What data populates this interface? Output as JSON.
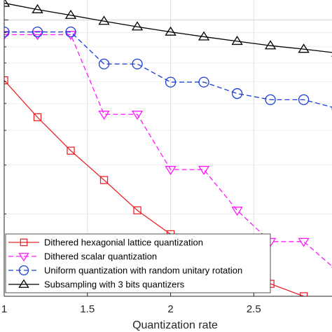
{
  "chart_data": {
    "type": "line",
    "xlabel": "Quantization rate",
    "ylabel": "",
    "title": "",
    "xlim": [
      1,
      2.97
    ],
    "ylim_log": [
      0.0101,
      0.118
    ],
    "yscale": "log",
    "grid": true,
    "legend_position": "bottom-left",
    "x_ticks": [
      1,
      1.5,
      2,
      2.5
    ],
    "x_tick_labels": [
      "1",
      "1.5",
      "2",
      "2.5"
    ],
    "series": [
      {
        "name": "Dithered hexagonial lattice quantization",
        "color": "#e8262a",
        "dash": "solid",
        "marker": "square",
        "x": [
          1,
          1.2,
          1.4,
          1.6,
          1.8,
          2.0,
          2.2,
          2.4,
          2.6,
          2.8,
          3.0
        ],
        "y": [
          0.0606,
          0.0446,
          0.0338,
          0.0265,
          0.0206,
          0.0169,
          0.0144,
          0.0123,
          0.0112,
          0.0101,
          0.0096
        ]
      },
      {
        "name": "Dithered scalar quantization",
        "color": "#ff19ff",
        "dash": "dashed",
        "marker": "triangle-down",
        "x": [
          1,
          1.2,
          1.4,
          1.6,
          1.8,
          2.0,
          2.2,
          2.4,
          2.6,
          2.8,
          3.0
        ],
        "y": [
          0.0885,
          0.0885,
          0.0885,
          0.0457,
          0.0457,
          0.0289,
          0.0289,
          0.0206,
          0.0159,
          0.0159,
          0.0125
        ]
      },
      {
        "name": "Uniform quantization with random unitary rotation",
        "color": "#1a3fd6",
        "dash": "dashed",
        "marker": "circle",
        "x": [
          1,
          1.2,
          1.4,
          1.6,
          1.8,
          2.0,
          2.2,
          2.4,
          2.6,
          2.8,
          3.0
        ],
        "y": [
          0.0905,
          0.0905,
          0.0905,
          0.0694,
          0.0694,
          0.0597,
          0.0597,
          0.0543,
          0.0516,
          0.0516,
          0.048
        ]
      },
      {
        "name": "Subsampling with 3 bits quantizers",
        "color": "#000000",
        "dash": "solid",
        "marker": "triangle-up",
        "x": [
          1,
          1.2,
          1.4,
          1.6,
          1.8,
          2.0,
          2.2,
          2.4,
          2.6,
          2.8,
          3.0
        ],
        "y": [
          0.115,
          0.109,
          0.104,
          0.099,
          0.0945,
          0.0905,
          0.087,
          0.0838,
          0.0808,
          0.0785,
          0.076
        ]
      }
    ]
  }
}
